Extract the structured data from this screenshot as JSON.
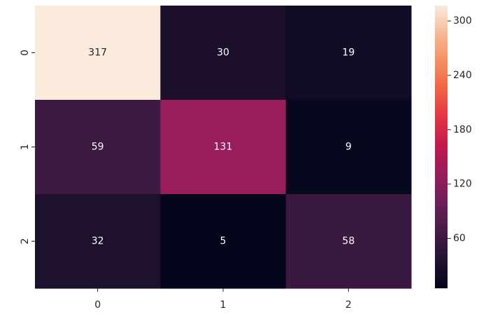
{
  "chart_data": {
    "type": "heatmap",
    "x_categories": [
      "0",
      "1",
      "2"
    ],
    "y_categories": [
      "0",
      "1",
      "2"
    ],
    "values": [
      [
        317,
        30,
        19
      ],
      [
        59,
        131,
        9
      ],
      [
        32,
        5,
        58
      ]
    ],
    "clim": [
      5,
      317
    ],
    "cticks": [
      60,
      120,
      180,
      240,
      300
    ],
    "colormap": [
      "#03051a",
      "#221331",
      "#451c47",
      "#6b1f59",
      "#971c5b",
      "#c0184f",
      "#e13342",
      "#f06043",
      "#f58e5f",
      "#f6b893",
      "#faebdd"
    ]
  }
}
